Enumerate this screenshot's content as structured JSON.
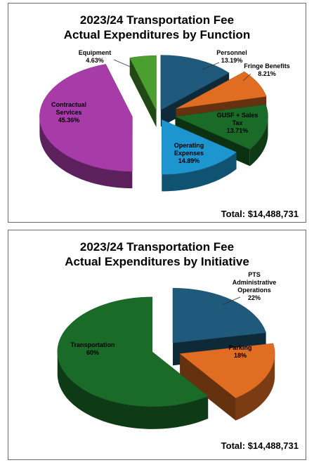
{
  "chart_data": [
    {
      "type": "pie",
      "title_line1": "2023/24 Transportation Fee",
      "title_line2": "Actual Expenditures by Function",
      "total_label": "Total:  $14,488,731",
      "slices": [
        {
          "name": "Personnel",
          "percent_label": "13.19%",
          "value": 13.19,
          "color": "#1f5a7c"
        },
        {
          "name": "Fringe Benefits",
          "percent_label": "8.21%",
          "value": 8.21,
          "color": "#e06d22"
        },
        {
          "name": "GUSF + Sales Tax",
          "percent_label": "13.71%",
          "value": 13.71,
          "color": "#1a6a28"
        },
        {
          "name": "Operating Expenses",
          "percent_label": "14.89%",
          "value": 14.89,
          "color": "#1d95cf"
        },
        {
          "name": "Contractual Services",
          "percent_label": "45.36%",
          "value": 45.36,
          "color": "#a73ba8"
        },
        {
          "name": "Equipment",
          "percent_label": "4.63%",
          "value": 4.63,
          "color": "#4a9f2e"
        }
      ]
    },
    {
      "type": "pie",
      "title_line1": "2023/24 Transportation Fee",
      "title_line2": "Actual Expenditures by Initiative",
      "total_label": "Total:  $14,488,731",
      "slices": [
        {
          "name": "PTS Administrative Operations",
          "percent_label": "22%",
          "value": 22,
          "color": "#1f5a7c"
        },
        {
          "name": "Parking",
          "percent_label": "18%",
          "value": 18,
          "color": "#e06d22"
        },
        {
          "name": "Transportation",
          "percent_label": "60%",
          "value": 60,
          "color": "#1a6a28"
        }
      ]
    }
  ]
}
